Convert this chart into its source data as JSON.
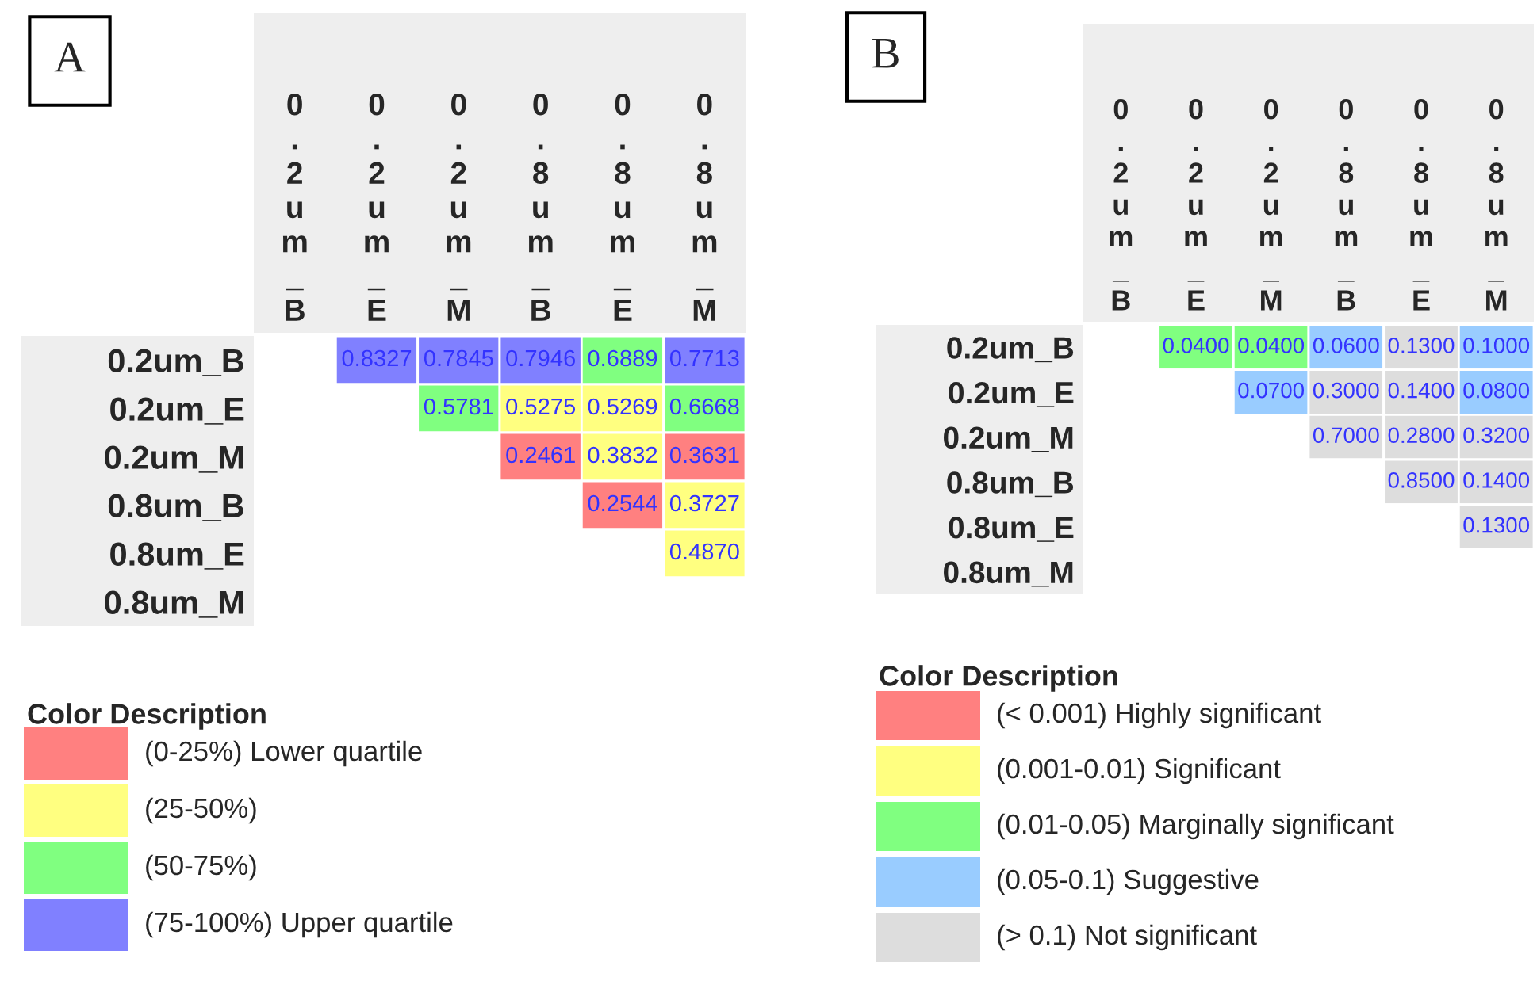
{
  "chart_data": [
    {
      "type": "heatmap",
      "title": "A",
      "categories": [
        "0.2um_B",
        "0.2um_E",
        "0.2um_M",
        "0.8um_B",
        "0.8um_E",
        "0.8um_M"
      ],
      "y_categories": [
        "0.2um_B",
        "0.2um_E",
        "0.2um_M",
        "0.8um_B",
        "0.8um_E",
        "0.8um_M"
      ],
      "cells": [
        [
          null,
          0.8327,
          0.7845,
          0.7946,
          0.6889,
          0.7713
        ],
        [
          null,
          null,
          0.5781,
          0.5275,
          0.5269,
          0.6668
        ],
        [
          null,
          null,
          null,
          0.2461,
          0.3832,
          0.3631
        ],
        [
          null,
          null,
          null,
          null,
          0.2544,
          0.3727
        ],
        [
          null,
          null,
          null,
          null,
          null,
          0.487
        ],
        [
          null,
          null,
          null,
          null,
          null,
          null
        ]
      ],
      "cell_labels": [
        [
          null,
          "0.8327",
          "0.7845",
          "0.7946",
          "0.6889",
          "0.7713"
        ],
        [
          null,
          null,
          "0.5781",
          "0.5275",
          "0.5269",
          "0.6668"
        ],
        [
          null,
          null,
          null,
          "0.2461",
          "0.3832",
          "0.3631"
        ],
        [
          null,
          null,
          null,
          null,
          "0.2544",
          "0.3727"
        ],
        [
          null,
          null,
          null,
          null,
          null,
          "0.4870"
        ],
        [
          null,
          null,
          null,
          null,
          null,
          null
        ]
      ],
      "colors": [
        [
          null,
          "#8080ff",
          "#8080ff",
          "#8080ff",
          "#80ff80",
          "#8080ff"
        ],
        [
          null,
          null,
          "#80ff80",
          "#ffff80",
          "#ffff80",
          "#80ff80"
        ],
        [
          null,
          null,
          null,
          "#ff8080",
          "#ffff80",
          "#ff8080"
        ],
        [
          null,
          null,
          null,
          null,
          "#ff8080",
          "#ffff80"
        ],
        [
          null,
          null,
          null,
          null,
          null,
          "#ffff80"
        ],
        [
          null,
          null,
          null,
          null,
          null,
          null
        ]
      ],
      "annotations": [
        "Color Description",
        "(0-25%) Lower quartile",
        "(25-50%)",
        "(50-75%)",
        "(75-100%) Upper quartile"
      ]
    },
    {
      "type": "heatmap",
      "title": "B",
      "categories": [
        "0.2um_B",
        "0.2um_E",
        "0.2um_M",
        "0.8um_B",
        "0.8um_E",
        "0.8um_M"
      ],
      "y_categories": [
        "0.2um_B",
        "0.2um_E",
        "0.2um_M",
        "0.8um_B",
        "0.8um_E",
        "0.8um_M"
      ],
      "cells": [
        [
          null,
          0.04,
          0.04,
          0.06,
          0.13,
          0.1
        ],
        [
          null,
          null,
          0.07,
          0.3,
          0.14,
          0.08
        ],
        [
          null,
          null,
          null,
          0.7,
          0.28,
          0.32
        ],
        [
          null,
          null,
          null,
          null,
          0.85,
          0.14
        ],
        [
          null,
          null,
          null,
          null,
          null,
          0.13
        ],
        [
          null,
          null,
          null,
          null,
          null,
          null
        ]
      ],
      "cell_labels": [
        [
          null,
          "0.0400",
          "0.0400",
          "0.0600",
          "0.1300",
          "0.1000"
        ],
        [
          null,
          null,
          "0.0700",
          "0.3000",
          "0.1400",
          "0.0800"
        ],
        [
          null,
          null,
          null,
          "0.7000",
          "0.2800",
          "0.3200"
        ],
        [
          null,
          null,
          null,
          null,
          "0.8500",
          "0.1400"
        ],
        [
          null,
          null,
          null,
          null,
          null,
          "0.1300"
        ],
        [
          null,
          null,
          null,
          null,
          null,
          null
        ]
      ],
      "colors": [
        [
          null,
          "#80ff80",
          "#80ff80",
          "#99ccff",
          "#dddddd",
          "#99ccff"
        ],
        [
          null,
          null,
          "#99ccff",
          "#dddddd",
          "#dddddd",
          "#99ccff"
        ],
        [
          null,
          null,
          null,
          "#dddddd",
          "#dddddd",
          "#dddddd"
        ],
        [
          null,
          null,
          null,
          null,
          "#dddddd",
          "#dddddd"
        ],
        [
          null,
          null,
          null,
          null,
          null,
          "#dddddd"
        ],
        [
          null,
          null,
          null,
          null,
          null,
          null
        ]
      ],
      "annotations": [
        "Color Description",
        "(< 0.001) Highly significant",
        "(0.001-0.01) Significant",
        "(0.01-0.05) Marginally significant",
        "(0.05-0.1) Suggestive",
        "(> 0.1) Not significant"
      ]
    }
  ]
}
